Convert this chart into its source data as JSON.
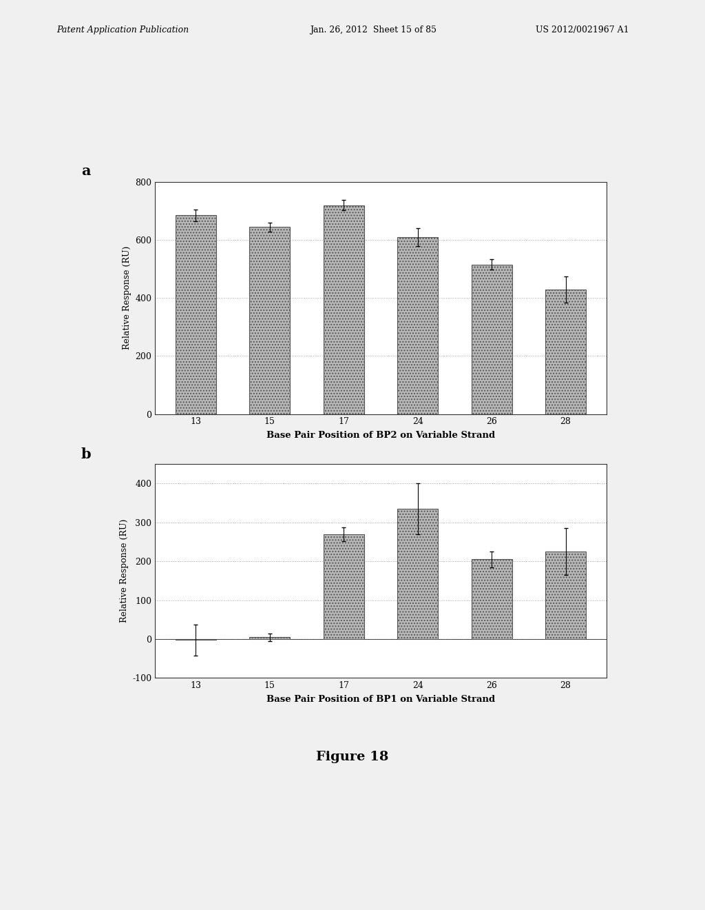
{
  "chart_a": {
    "categories": [
      "13",
      "15",
      "17",
      "24",
      "26",
      "28"
    ],
    "values": [
      685,
      645,
      720,
      610,
      515,
      430
    ],
    "errors": [
      20,
      15,
      18,
      30,
      18,
      45
    ],
    "ylabel": "Relative Response (RU)",
    "xlabel": "Base Pair Position of BP2 on Variable Strand",
    "ylim": [
      0,
      800
    ],
    "yticks": [
      0,
      200,
      400,
      600,
      800
    ],
    "label": "a"
  },
  "chart_b": {
    "categories": [
      "13",
      "15",
      "17",
      "24",
      "26",
      "28"
    ],
    "values": [
      -2,
      5,
      270,
      335,
      205,
      225
    ],
    "errors": [
      40,
      10,
      18,
      65,
      20,
      60
    ],
    "ylabel": "Relative Response (RU)",
    "xlabel": "Base Pair Position of BP1 on Variable Strand",
    "ylim": [
      -100,
      450
    ],
    "yticks": [
      -100,
      0,
      100,
      200,
      300,
      400
    ],
    "label": "b"
  },
  "figure_title": "Figure 18",
  "bar_color": "#b8b8b8",
  "bar_hatch": "....",
  "bar_edgecolor": "#555555",
  "header_left": "Patent Application Publication",
  "header_mid": "Jan. 26, 2012  Sheet 15 of 85",
  "header_right": "US 2012/0021967 A1",
  "background_color": "#f0f0f0",
  "grid_color": "#aaaaaa",
  "grid_linestyle": "dotted"
}
